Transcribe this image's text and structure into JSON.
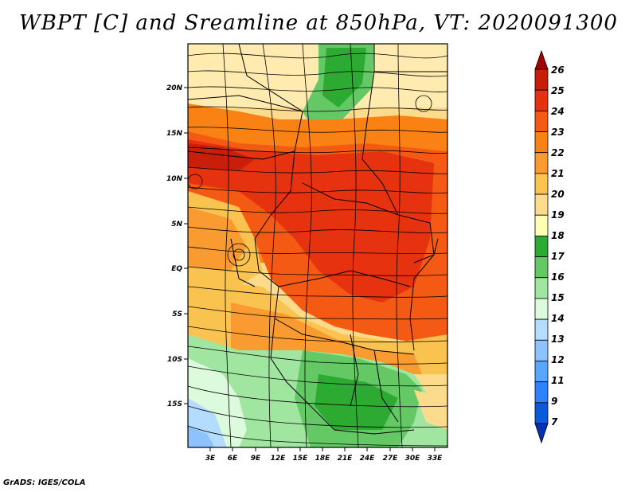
{
  "title": "WBPT [C] and Sreamline at 850hPa, VT: 2020091300",
  "footer": "GrADS: IGES/COLA",
  "map": {
    "lat_labels": [
      "20N",
      "15N",
      "10N",
      "5N",
      "EQ",
      "5S",
      "10S",
      "15S"
    ],
    "lon_labels": [
      "3E",
      "6E",
      "9E",
      "12E",
      "15E",
      "18E",
      "21E",
      "24E",
      "27E",
      "30E",
      "33E"
    ]
  },
  "colorbar": {
    "labels": [
      "26",
      "25",
      "24",
      "23",
      "22",
      "21",
      "20",
      "19",
      "18",
      "17",
      "16",
      "15",
      "14",
      "13",
      "12",
      "11",
      "9",
      "7"
    ],
    "colors": [
      "#a50000",
      "#c81e0a",
      "#e6320f",
      "#f55a14",
      "#fa8214",
      "#fa9b32",
      "#fac350",
      "#fcdc8c",
      "#ffffb4",
      "#2daa32",
      "#64c864",
      "#a0e6a0",
      "#dcfadc",
      "#b4dcff",
      "#8cc3ff",
      "#5aa5ff",
      "#2d82ff",
      "#0a5adc",
      "#0032b4"
    ]
  },
  "palette": {
    "red_dark": "#a50000",
    "red": "#e6320f",
    "orange": "#fa8214",
    "amber": "#fac350",
    "cream": "#fcdc8c",
    "green": "#2daa32",
    "green_light": "#64c864",
    "mint": "#a0e6a0",
    "blue_light": "#b4dcff"
  }
}
